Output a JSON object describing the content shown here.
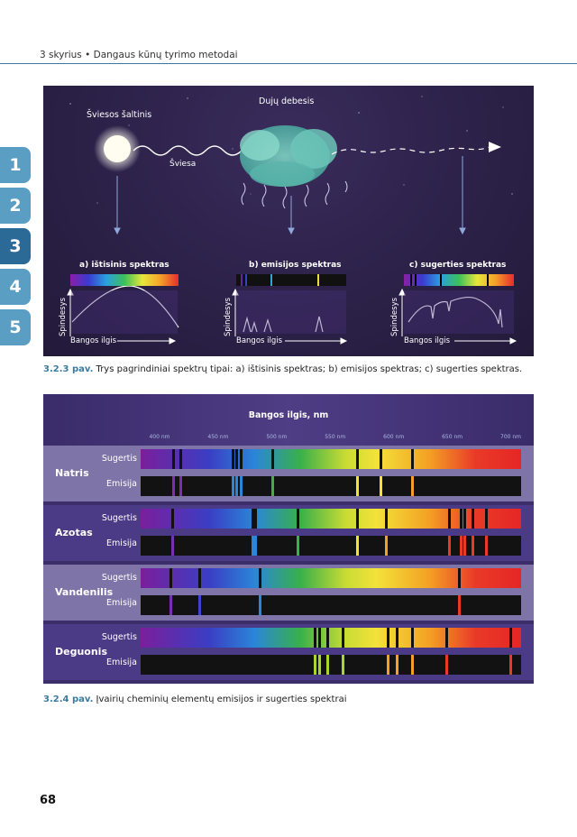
{
  "header": {
    "text": "3 skyrius • Dangaus kūnų tyrimo metodai"
  },
  "chapter_tabs": [
    {
      "label": "1",
      "color": "#5b9ec4",
      "active": false
    },
    {
      "label": "2",
      "color": "#5b9ec4",
      "active": false
    },
    {
      "label": "3",
      "color": "#2b6a96",
      "active": true
    },
    {
      "label": "4",
      "color": "#5b9ec4",
      "active": false
    },
    {
      "label": "5",
      "color": "#5b9ec4",
      "active": false
    }
  ],
  "figure1": {
    "light_source": "Šviesos šaltinis",
    "light": "Šviesa",
    "gas_cloud": "Dujų debesis",
    "panels": [
      {
        "title": "a) ištisinis spektras",
        "ylabel": "Spindesys",
        "xlabel": "Bangos ilgis"
      },
      {
        "title": "b) emisijos spektras",
        "ylabel": "Spindesys",
        "xlabel": "Bangos ilgis"
      },
      {
        "title": "c) sugerties spektras",
        "ylabel": "Spindesys",
        "xlabel": "Bangos ilgis"
      }
    ],
    "caption_num": "3.2.3 pav.",
    "caption_text": " Trys pagrindiniai spektrų tipai: a) ištisinis spektras; b) emisijos spektras; c) sugerties spektras."
  },
  "figure2": {
    "axis_title": "Bangos ilgis, nm",
    "ticks": [
      "400 nm",
      "450 nm",
      "500 nm",
      "550 nm",
      "600 nm",
      "650 nm",
      "700 nm"
    ],
    "row_labels": {
      "absorption": "Sugertis",
      "emission": "Emisija"
    },
    "elements": [
      {
        "name": "Natris",
        "lines_nm": [
          412,
          418,
          463,
          466,
          470,
          497,
          569,
          589,
          616
        ]
      },
      {
        "name": "Azotas",
        "lines_nm": [
          411,
          480,
          482,
          518,
          569,
          594,
          648,
          658,
          661,
          668,
          679
        ]
      },
      {
        "name": "Vandenilis",
        "lines_nm": [
          410,
          434,
          486,
          656
        ]
      },
      {
        "name": "Deguonis",
        "lines_nm": [
          533,
          537,
          544,
          557,
          595,
          603,
          616,
          645,
          700
        ]
      }
    ],
    "caption_num": "3.2.4 pav.",
    "caption_text": " Įvairių cheminių elementų emisijos ir sugerties spektrai"
  },
  "page_number": "68"
}
